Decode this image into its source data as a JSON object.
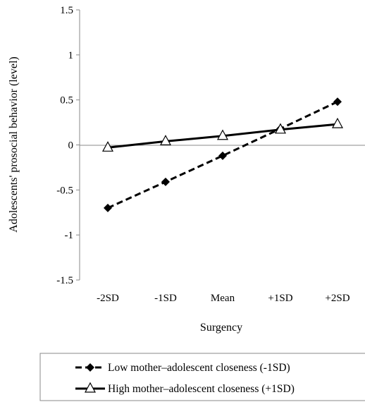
{
  "chart_data": {
    "type": "line",
    "xlabel": "Surgency",
    "ylabel": "Adolescents' prosocial behavior (level)",
    "categories": [
      "-2SD",
      "-1SD",
      "Mean",
      "+1SD",
      "+2SD"
    ],
    "ylim": [
      -1.5,
      1.5
    ],
    "yticks": [
      "1.5",
      "1",
      "0.5",
      "0",
      "-0.5",
      "-1",
      "-1.5"
    ],
    "yticks_values": [
      1.5,
      1,
      0.5,
      0,
      -0.5,
      -1,
      -1.5
    ],
    "grid": false,
    "legend_position": "bottom",
    "series": [
      {
        "name": "Low mother–adolescent closeness (-1SD)",
        "values": [
          -0.7,
          -0.41,
          -0.12,
          0.18,
          0.48
        ],
        "line_style": "dashed",
        "marker": "diamond",
        "color": "#000000"
      },
      {
        "name": "High mother–adolescent closeness (+1SD)",
        "values": [
          -0.03,
          0.04,
          0.1,
          0.17,
          0.23
        ],
        "line_style": "solid",
        "marker": "open-triangle",
        "color": "#000000"
      }
    ]
  }
}
